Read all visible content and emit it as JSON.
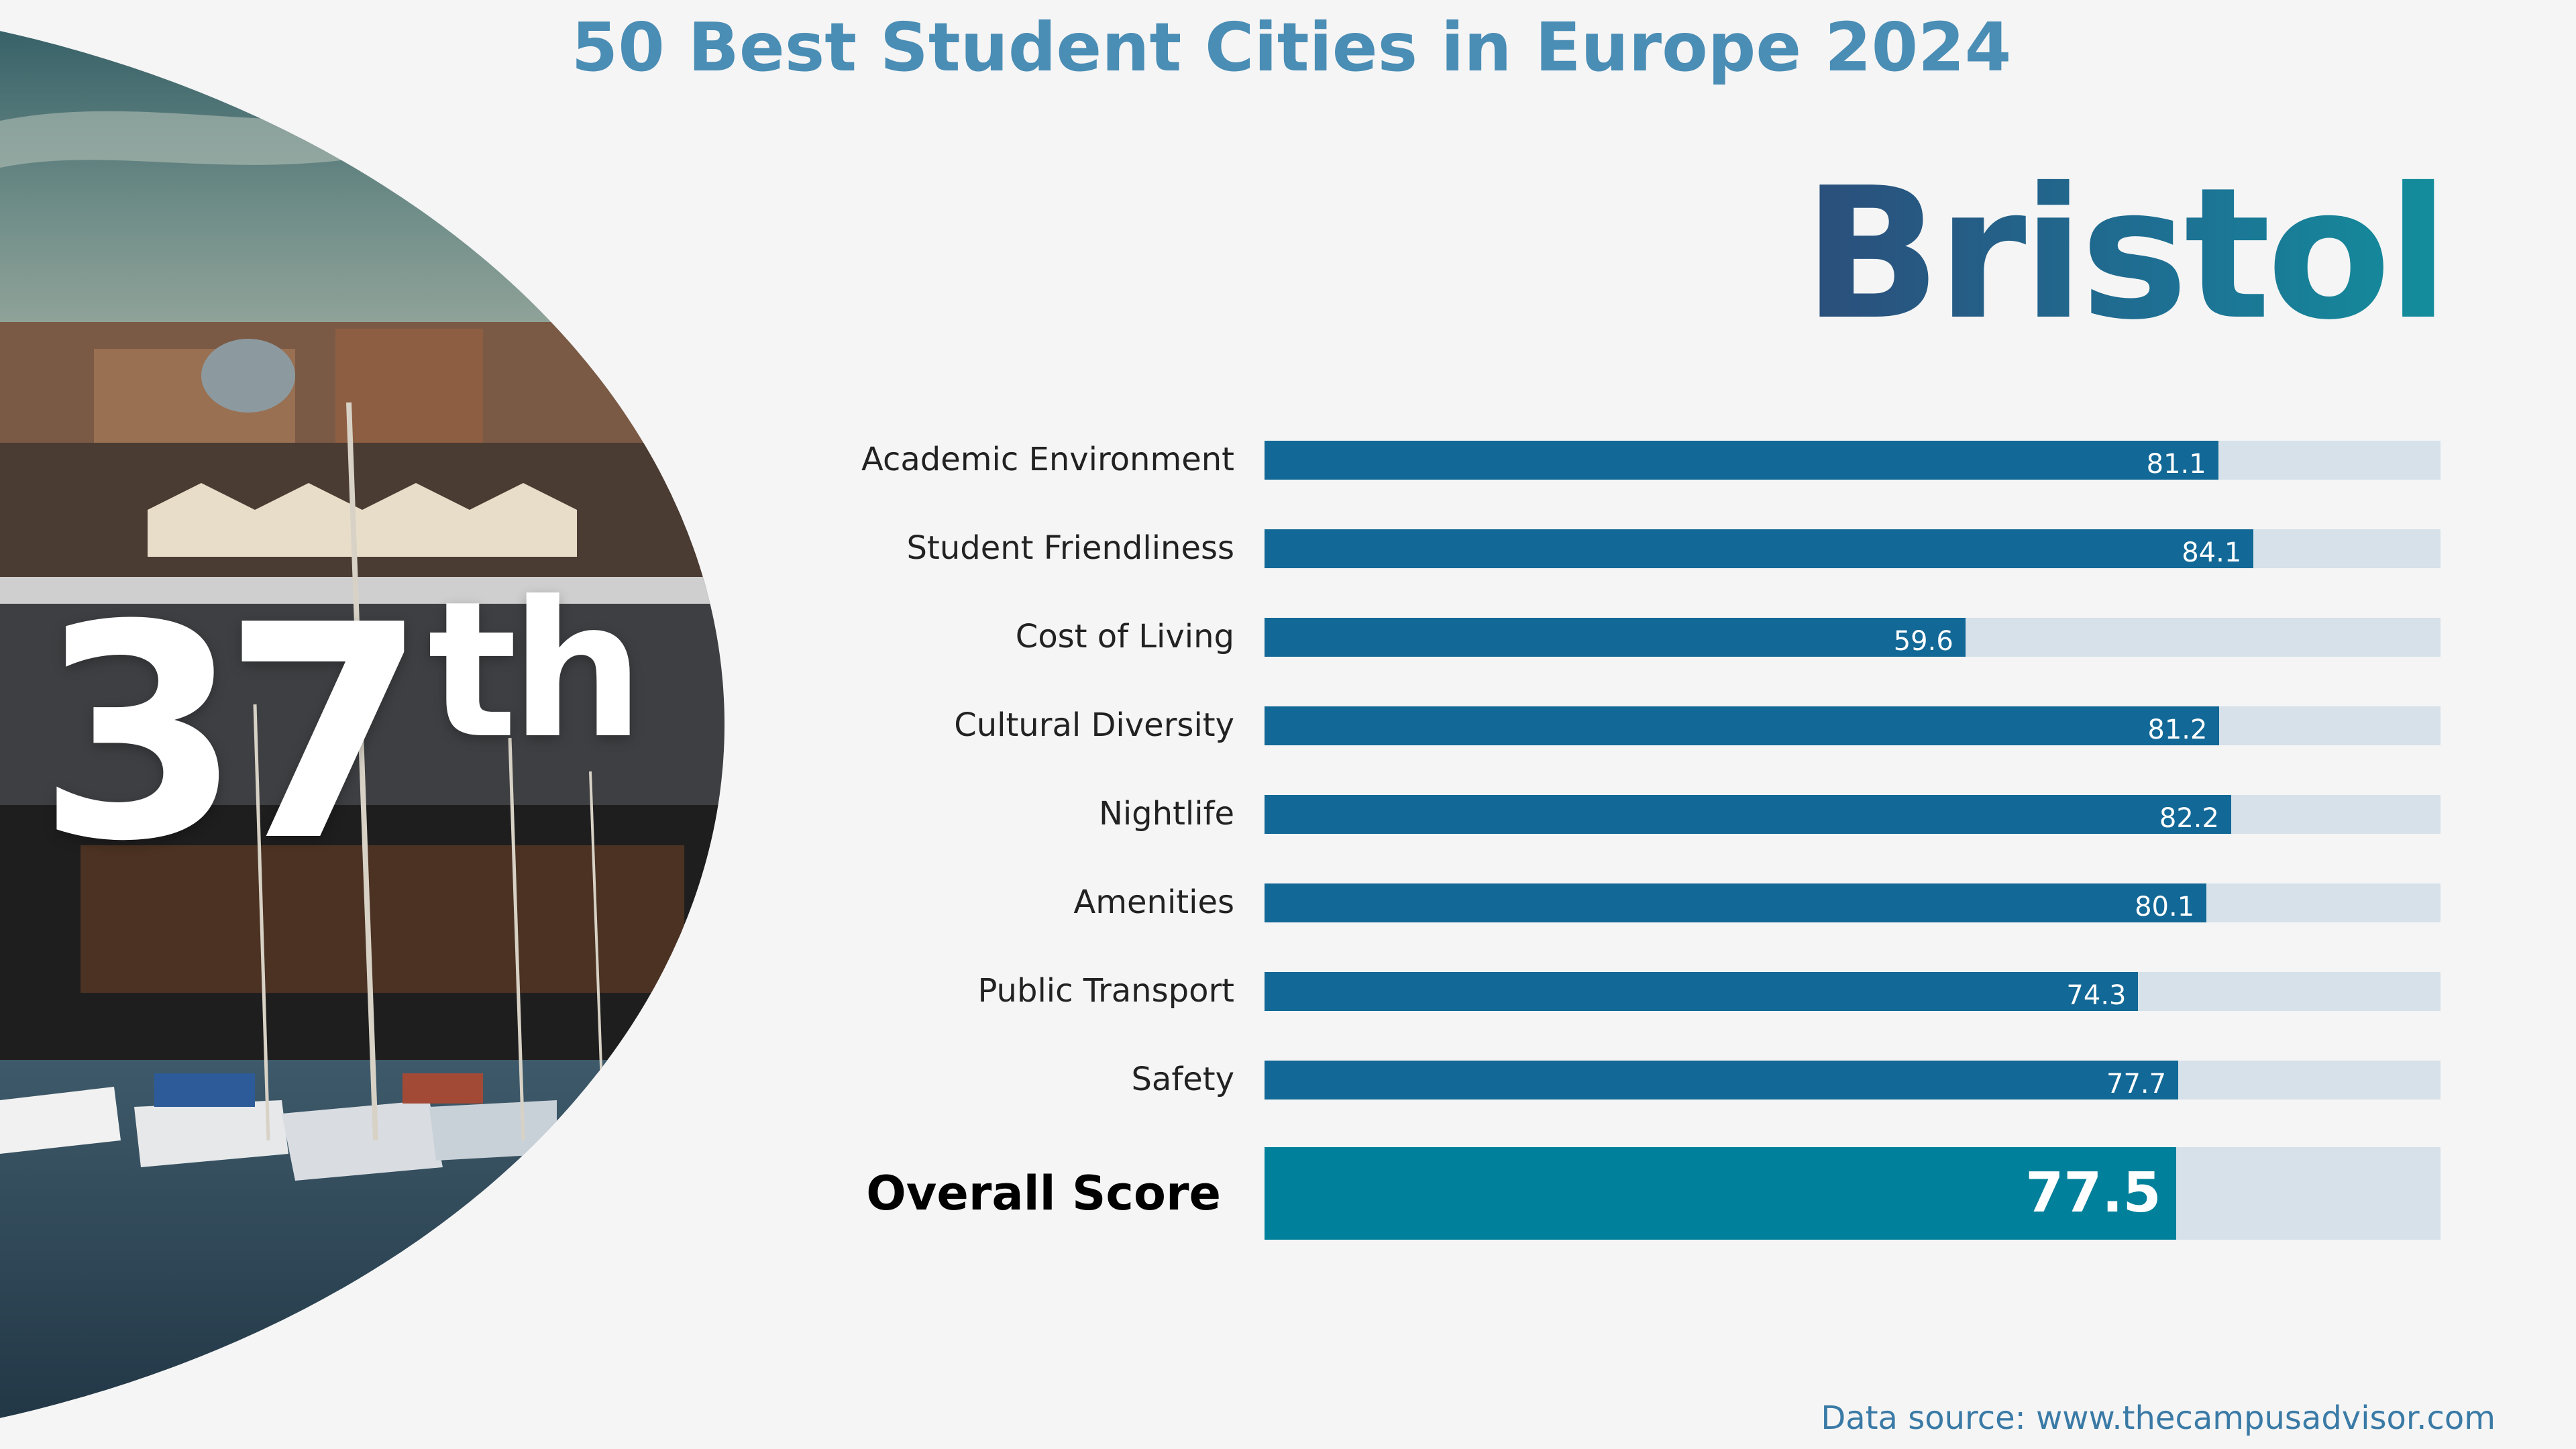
{
  "title": "50 Best Student Cities in Europe 2024",
  "city": "Bristol",
  "rank": {
    "number": "37",
    "suffix": "th"
  },
  "source": "Data source: www.thecampusadvisor.com",
  "colors": {
    "title": "#4a8db5",
    "bar_fill": "#126896",
    "bar_track": "#d6e1e9",
    "overall_fill": "#00809a",
    "city_gradient_start": "#2b4e7a",
    "city_gradient_end": "#138e9c"
  },
  "chart_data": {
    "type": "bar",
    "orientation": "horizontal",
    "categories": [
      "Academic Environment",
      "Student Friendliness",
      "Cost of Living",
      "Cultural Diversity",
      "Nightlife",
      "Amenities",
      "Public Transport",
      "Safety"
    ],
    "values": [
      81.1,
      84.1,
      59.6,
      81.2,
      82.2,
      80.1,
      74.3,
      77.7
    ],
    "value_labels": [
      "81.1",
      "84.1",
      "59.6",
      "81.2",
      "82.2",
      "80.1",
      "74.3",
      "77.7"
    ],
    "xlim": [
      0,
      100
    ],
    "grid": false,
    "overall": {
      "label": "Overall Score",
      "value": 77.5,
      "value_label": "77.5"
    }
  }
}
